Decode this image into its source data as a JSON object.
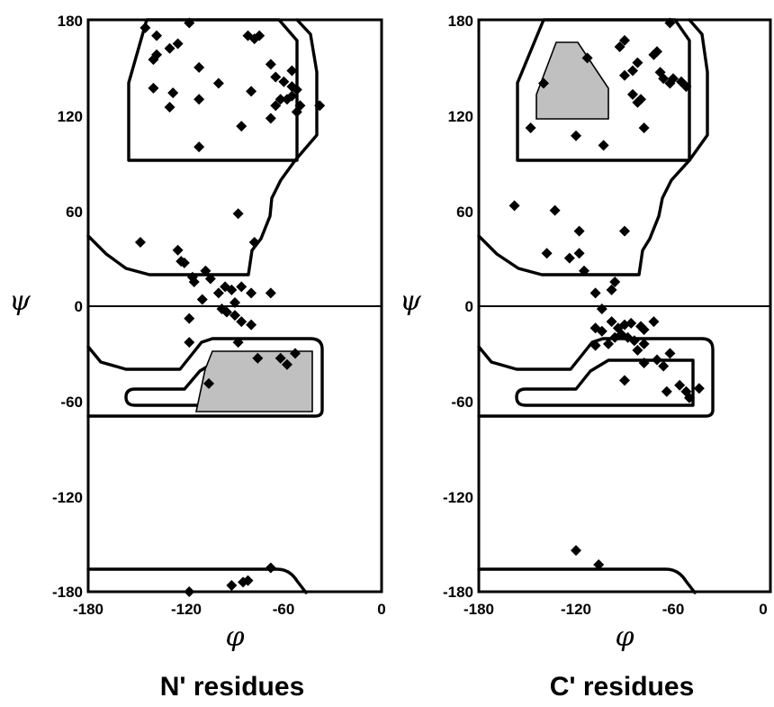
{
  "chart_data": [
    {
      "type": "scatter",
      "title": "N' residues",
      "xlabel": "φ",
      "ylabel": "ψ",
      "xlim": [
        -180,
        0
      ],
      "ylim": [
        -180,
        180
      ],
      "xticks": [
        "-180",
        "-120",
        "-60",
        "0"
      ],
      "yticks": [
        "180",
        "120",
        "60",
        "0",
        "-60",
        "-120",
        "-180"
      ],
      "grid": false,
      "zero_line": true,
      "points": [
        [
          -145,
          175
        ],
        [
          -118,
          178
        ],
        [
          -138,
          170
        ],
        [
          -125,
          165
        ],
        [
          -130,
          162
        ],
        [
          -140,
          155
        ],
        [
          -138,
          158
        ],
        [
          -82,
          170
        ],
        [
          -78,
          168
        ],
        [
          -75,
          170
        ],
        [
          -112,
          150
        ],
        [
          -68,
          152
        ],
        [
          -55,
          148
        ],
        [
          -65,
          144
        ],
        [
          -60,
          141
        ],
        [
          -55,
          138
        ],
        [
          -52,
          136
        ],
        [
          -55,
          132
        ],
        [
          -58,
          130
        ],
        [
          -62,
          130
        ],
        [
          -65,
          126
        ],
        [
          -38,
          126
        ],
        [
          -50,
          126
        ],
        [
          -52,
          122
        ],
        [
          -112,
          130
        ],
        [
          -128,
          134
        ],
        [
          -140,
          137
        ],
        [
          -130,
          125
        ],
        [
          -68,
          118
        ],
        [
          -86,
          113
        ],
        [
          -80,
          135
        ],
        [
          -100,
          140
        ],
        [
          -112,
          100
        ],
        [
          -88,
          58
        ],
        [
          -78,
          40
        ],
        [
          -148,
          40
        ],
        [
          -125,
          35
        ],
        [
          -123,
          28
        ],
        [
          -121,
          27
        ],
        [
          -116,
          18
        ],
        [
          -115,
          15
        ],
        [
          -108,
          22
        ],
        [
          -105,
          17
        ],
        [
          -100,
          8
        ],
        [
          -96,
          12
        ],
        [
          -92,
          10
        ],
        [
          -86,
          12
        ],
        [
          -80,
          8
        ],
        [
          -68,
          8
        ],
        [
          -90,
          2
        ],
        [
          -98,
          -2
        ],
        [
          -110,
          4
        ],
        [
          -118,
          -8
        ],
        [
          -95,
          -4
        ],
        [
          -90,
          -6
        ],
        [
          -86,
          -10
        ],
        [
          -80,
          -12
        ],
        [
          -118,
          -23
        ],
        [
          -88,
          -23
        ],
        [
          -76,
          -33
        ],
        [
          -62,
          -33
        ],
        [
          -106,
          -49
        ],
        [
          -58,
          -37
        ],
        [
          -53,
          -30
        ],
        [
          -68,
          -165
        ],
        [
          -82,
          -173
        ],
        [
          -85,
          -174
        ],
        [
          -92,
          -176
        ],
        [
          -118,
          -180
        ]
      ]
    },
    {
      "type": "scatter",
      "title": "C' residues",
      "xlabel": "φ",
      "ylabel": "ψ",
      "xlim": [
        -180,
        0
      ],
      "ylim": [
        -180,
        180
      ],
      "xticks": [
        "-180",
        "-120",
        "-60",
        "0"
      ],
      "yticks": [
        "180",
        "120",
        "60",
        "0",
        "-60",
        "-120",
        "-180"
      ],
      "grid": false,
      "zero_line": true,
      "points": [
        [
          -90,
          167
        ],
        [
          -93,
          163
        ],
        [
          -62,
          178
        ],
        [
          -113,
          156
        ],
        [
          -90,
          145
        ],
        [
          -85,
          148
        ],
        [
          -72,
          158
        ],
        [
          -70,
          160
        ],
        [
          -82,
          153
        ],
        [
          -68,
          147
        ],
        [
          -66,
          143
        ],
        [
          -62,
          140
        ],
        [
          -60,
          143
        ],
        [
          -55,
          141
        ],
        [
          -52,
          138
        ],
        [
          -80,
          130
        ],
        [
          -85,
          133
        ],
        [
          -82,
          128
        ],
        [
          -78,
          112
        ],
        [
          -140,
          140
        ],
        [
          -148,
          112
        ],
        [
          -120,
          107
        ],
        [
          -103,
          101
        ],
        [
          -158,
          63
        ],
        [
          -133,
          60
        ],
        [
          -118,
          47
        ],
        [
          -90,
          47
        ],
        [
          -138,
          33
        ],
        [
          -124,
          30
        ],
        [
          -115,
          22
        ],
        [
          -118,
          33
        ],
        [
          -108,
          8
        ],
        [
          -98,
          10
        ],
        [
          -96,
          15
        ],
        [
          -104,
          -2
        ],
        [
          -98,
          -10
        ],
        [
          -94,
          -14
        ],
        [
          -90,
          -12
        ],
        [
          -86,
          -11
        ],
        [
          -80,
          -13
        ],
        [
          -78,
          -15
        ],
        [
          -72,
          -10
        ],
        [
          -88,
          -20
        ],
        [
          -84,
          -22
        ],
        [
          -108,
          -14
        ],
        [
          -104,
          -16
        ],
        [
          -100,
          -24
        ],
        [
          -96,
          -20
        ],
        [
          -92,
          -18
        ],
        [
          -82,
          -28
        ],
        [
          -78,
          -24
        ],
        [
          -108,
          -25
        ],
        [
          -62,
          -30
        ],
        [
          -70,
          -34
        ],
        [
          -78,
          -36
        ],
        [
          -66,
          -38
        ],
        [
          -56,
          -50
        ],
        [
          -52,
          -54
        ],
        [
          -50,
          -58
        ],
        [
          -44,
          -52
        ],
        [
          -90,
          -47
        ],
        [
          -64,
          -54
        ],
        [
          -120,
          -154
        ],
        [
          -106,
          -163
        ]
      ]
    }
  ]
}
